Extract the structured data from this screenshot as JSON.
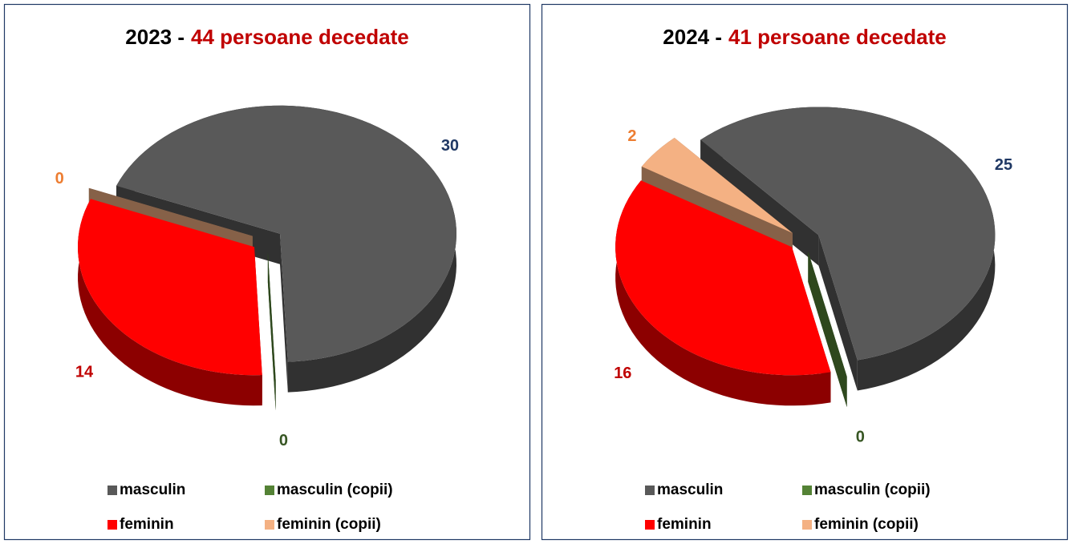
{
  "chart_data": [
    {
      "type": "pie3d",
      "title": "2023 -",
      "subtitle": "44 persoane decedate",
      "categories": [
        "masculin",
        "masculin (copii)",
        "feminin",
        "feminin (copii)"
      ],
      "values": [
        30,
        0,
        14,
        0
      ],
      "colors": [
        "#595959",
        "#548235",
        "#ff0000",
        "#f4b183"
      ],
      "label_colors": [
        "#1f3864",
        "#375623",
        "#c00000",
        "#ed7d31"
      ]
    },
    {
      "type": "pie3d",
      "title": "2024 -",
      "subtitle": "41 persoane decedate",
      "categories": [
        "masculin",
        "masculin (copii)",
        "feminin",
        "feminin (copii)"
      ],
      "values": [
        25,
        0,
        16,
        2
      ],
      "colors": [
        "#595959",
        "#548235",
        "#ff0000",
        "#f4b183"
      ],
      "label_colors": [
        "#1f3864",
        "#375623",
        "#c00000",
        "#ed7d31"
      ]
    }
  ]
}
